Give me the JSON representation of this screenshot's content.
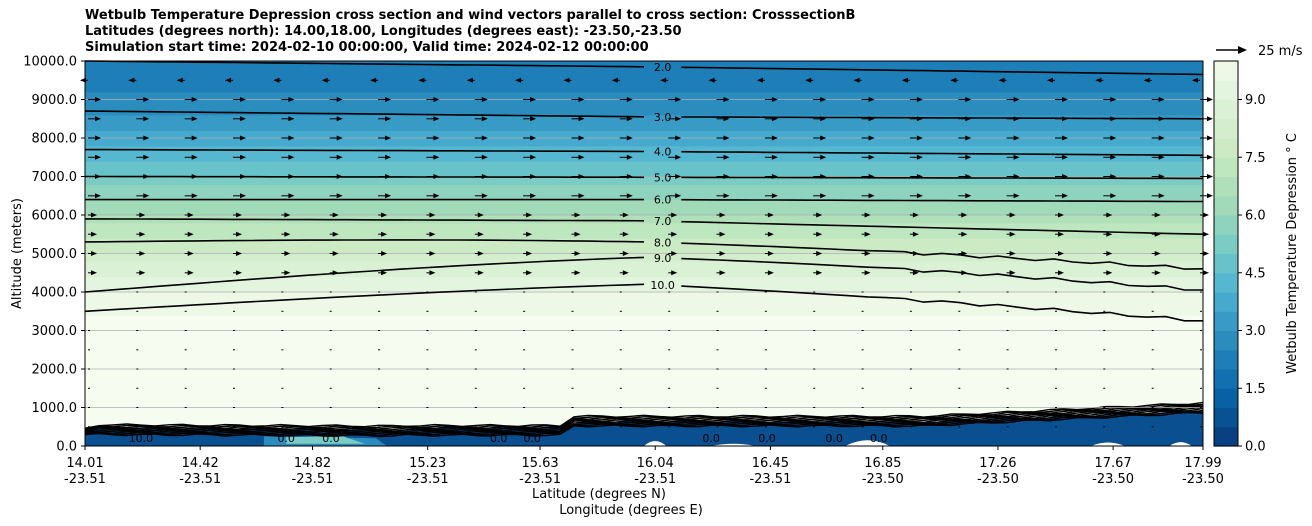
{
  "chart_data": {
    "type": "contourf",
    "title_lines": [
      "Wetbulb Temperature Depression cross section and wind vectors parallel to cross section: CrosssectionB",
      "Latitudes (degrees north): 14.00,18.00, Longitudes (degrees east): -23.50,-23.50",
      "Simulation start time: 2024-02-10 00:00:00, Valid time: 2024-02-12 00:00:00"
    ],
    "ylabel": "Altitude (meters)",
    "xlabel": "Latitude (degrees N)",
    "xlabel2": "Longitude (degrees E)",
    "ylim": [
      0,
      10000
    ],
    "yticks": [
      "0.0",
      "1000.0",
      "2000.0",
      "3000.0",
      "4000.0",
      "5000.0",
      "6000.0",
      "7000.0",
      "8000.0",
      "9000.0",
      "10000.0"
    ],
    "xlim": [
      14.01,
      17.99
    ],
    "xticks": [
      {
        "lat": "14.01",
        "lon": "-23.51"
      },
      {
        "lat": "14.42",
        "lon": "-23.51"
      },
      {
        "lat": "14.82",
        "lon": "-23.51"
      },
      {
        "lat": "15.23",
        "lon": "-23.51"
      },
      {
        "lat": "15.63",
        "lon": "-23.51"
      },
      {
        "lat": "16.04",
        "lon": "-23.51"
      },
      {
        "lat": "16.45",
        "lon": "-23.51"
      },
      {
        "lat": "16.85",
        "lon": "-23.50"
      },
      {
        "lat": "17.26",
        "lon": "-23.50"
      },
      {
        "lat": "17.67",
        "lon": "-23.50"
      },
      {
        "lat": "17.99",
        "lon": "-23.50"
      }
    ],
    "grid": "horizontal",
    "colorbar": {
      "label": "Wetbulb Temperature Depression $^\\circ$C",
      "label_text": "Wetbulb Temperature Depression ° C",
      "range": [
        0,
        10
      ],
      "ticks": [
        "0.0",
        "1.5",
        "3.0",
        "4.5",
        "6.0",
        "7.5",
        "9.0"
      ],
      "colormap": "GnBu_r"
    },
    "wind_reference": "25 m/s",
    "contour_lines": [
      {
        "label": "2.0",
        "alt_left": 10000,
        "alt_mid": 9850,
        "alt_right": 9650
      },
      {
        "label": "3.0",
        "alt_left": 8700,
        "alt_mid": 8550,
        "alt_right": 8500
      },
      {
        "label": "4.0",
        "alt_left": 7700,
        "alt_mid": 7650,
        "alt_right": 7550
      },
      {
        "label": "5.0",
        "alt_left": 7000,
        "alt_mid": 6980,
        "alt_right": 6950
      },
      {
        "label": "6.0",
        "alt_left": 6400,
        "alt_mid": 6400,
        "alt_right": 6350
      },
      {
        "label": "7.0",
        "alt_left": 5900,
        "alt_mid": 5850,
        "alt_right": 5500
      },
      {
        "label": "8.0",
        "alt_left": 5300,
        "alt_mid": 5050,
        "alt_right": 4600
      },
      {
        "label": "9.0",
        "alt_left": 4000,
        "alt_mid": 4500,
        "alt_right": 4050
      },
      {
        "label": "10.0",
        "alt_left": 3500,
        "alt_mid": 3950,
        "alt_right": 3250
      }
    ],
    "surface_labels": [
      "10.0",
      "0.0",
      "0.0",
      "0.0",
      "0.0",
      "0.0",
      "0.0",
      "0.0",
      "0.0"
    ]
  }
}
